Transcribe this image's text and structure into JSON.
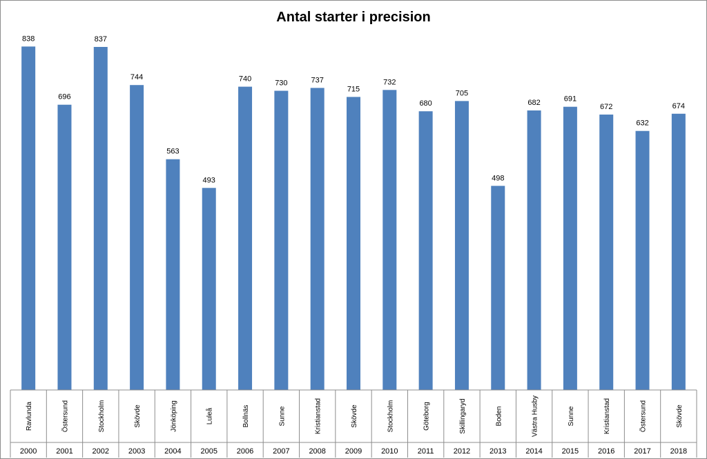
{
  "chart_data": {
    "type": "bar",
    "title": "Antal starter i precision",
    "xlabel": "",
    "ylabel": "",
    "ylim": [
      0,
      900
    ],
    "grid": false,
    "legend": "none",
    "categories": [
      {
        "place": "Ravlunda",
        "year": "2000"
      },
      {
        "place": "Östersund",
        "year": "2001"
      },
      {
        "place": "Stockholm",
        "year": "2002"
      },
      {
        "place": "Skövde",
        "year": "2003"
      },
      {
        "place": "Jönköping",
        "year": "2004"
      },
      {
        "place": "Luleå",
        "year": "2005"
      },
      {
        "place": "Bollnäs",
        "year": "2006"
      },
      {
        "place": "Sunne",
        "year": "2007"
      },
      {
        "place": "Kristianstad",
        "year": "2008"
      },
      {
        "place": "Skövde",
        "year": "2009"
      },
      {
        "place": "Stockholm",
        "year": "2010"
      },
      {
        "place": "Göteborg",
        "year": "2011"
      },
      {
        "place": "Skillingaryd",
        "year": "2012"
      },
      {
        "place": "Boden",
        "year": "2013"
      },
      {
        "place": "Västra Husby",
        "year": "2014"
      },
      {
        "place": "Sunne",
        "year": "2015"
      },
      {
        "place": "Kristianstad",
        "year": "2016"
      },
      {
        "place": "Östersund",
        "year": "2017"
      },
      {
        "place": "Skövde",
        "year": "2018"
      }
    ],
    "values": [
      838,
      696,
      837,
      744,
      563,
      493,
      740,
      730,
      737,
      715,
      732,
      680,
      705,
      498,
      682,
      691,
      672,
      632,
      674
    ],
    "colors": {
      "bar": "#4f81bd",
      "axis": "#8c8c8c"
    }
  }
}
